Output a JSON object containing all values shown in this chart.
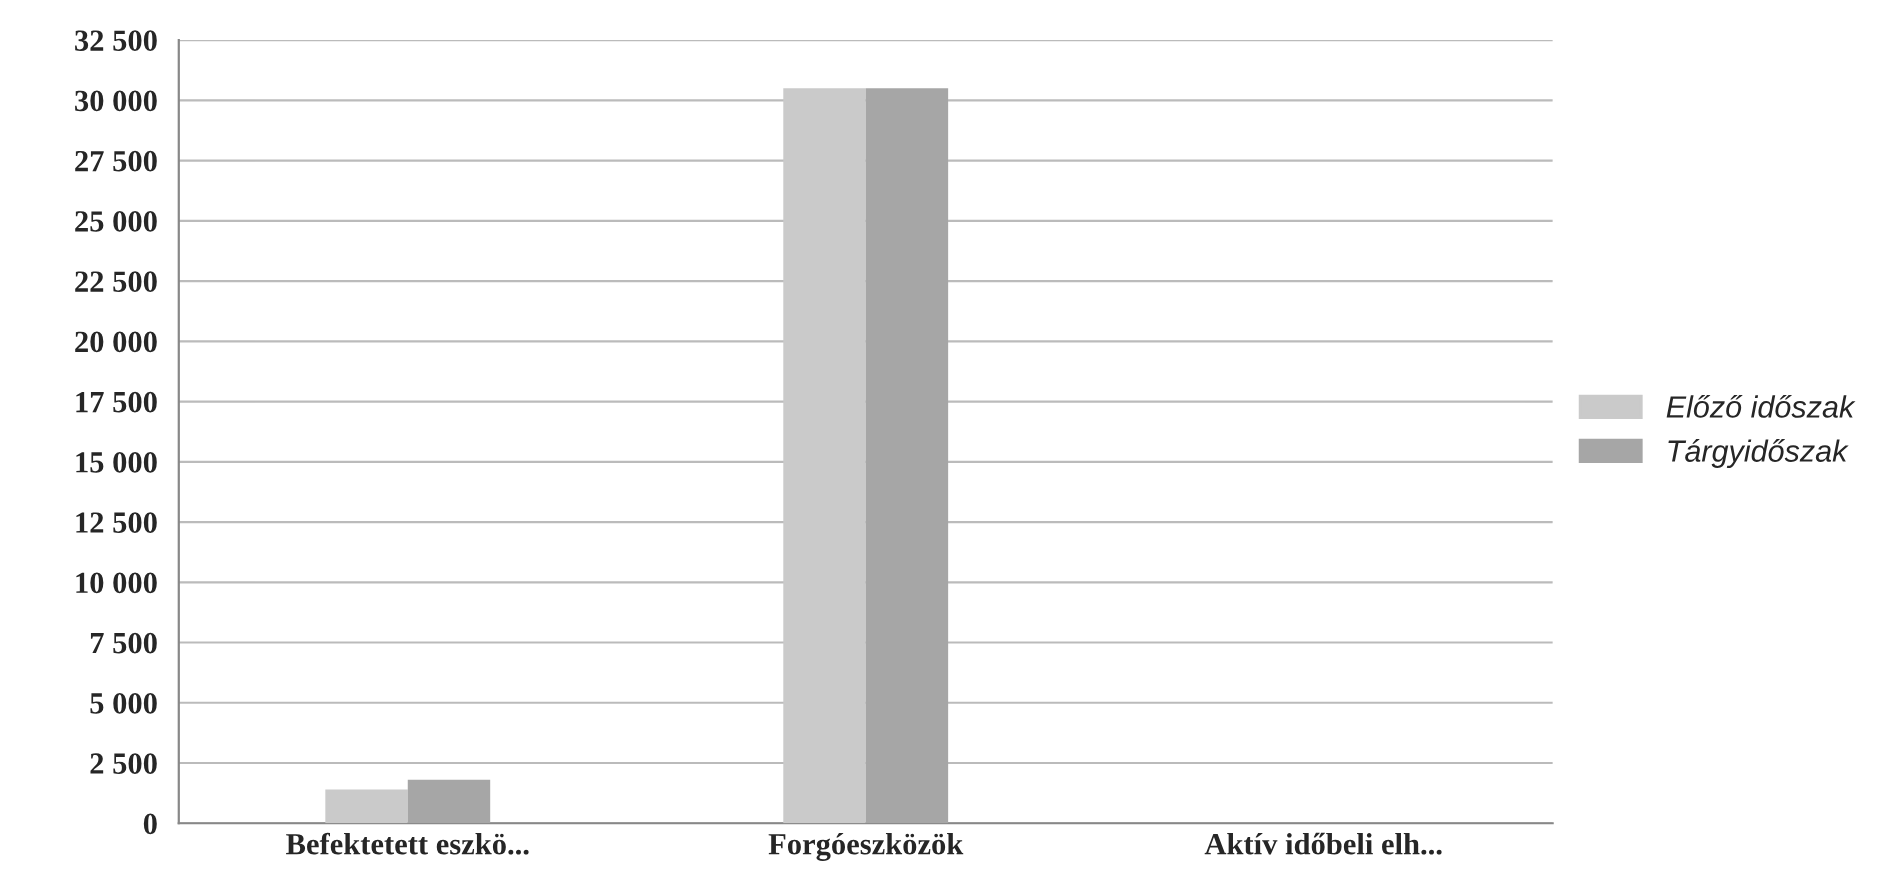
{
  "chart_data": {
    "type": "bar",
    "categories": [
      "Befektetett eszkö...",
      "Forgóeszközök",
      "Aktív időbeli elh..."
    ],
    "series": [
      {
        "name": "Előző időszak",
        "color": "#cacaca",
        "values": [
          1400,
          30500,
          null
        ]
      },
      {
        "name": "Tárgyidőszak",
        "color": "#a6a6a6",
        "values": [
          1800,
          30500,
          null
        ]
      }
    ],
    "ylim": [
      0,
      32500
    ],
    "yticks": [
      {
        "value": 0,
        "label": "0"
      },
      {
        "value": 2500,
        "label": "2 500"
      },
      {
        "value": 5000,
        "label": "5 000"
      },
      {
        "value": 7500,
        "label": "7 500"
      },
      {
        "value": 10000,
        "label": "10 000"
      },
      {
        "value": 12500,
        "label": "12 500"
      },
      {
        "value": 15000,
        "label": "15 000"
      },
      {
        "value": 17500,
        "label": "17 500"
      },
      {
        "value": 20000,
        "label": "20 000"
      },
      {
        "value": 22500,
        "label": "22 500"
      },
      {
        "value": 25000,
        "label": "25 000"
      },
      {
        "value": 27500,
        "label": "27 500"
      },
      {
        "value": 30000,
        "label": "30 000"
      },
      {
        "value": 32500,
        "label": "32 500"
      }
    ],
    "grid": "y",
    "legend": "right"
  }
}
